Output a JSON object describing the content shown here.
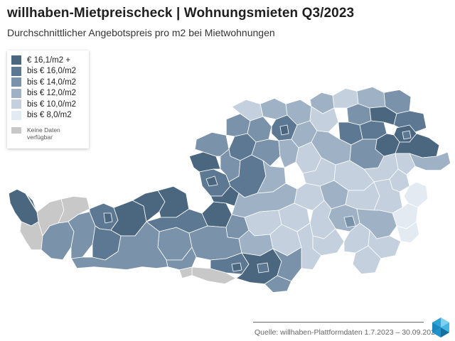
{
  "header": {
    "title": "willhaben-Mietpreischeck | Wohnungsmieten Q3/2023",
    "subtitle": "Durchschnittlicher Angebotspreis pro m2 bei Mietwohnungen"
  },
  "legend": {
    "items": [
      {
        "label": "€ 16,1/m2 +",
        "color": "#4b6780"
      },
      {
        "label": "bis € 16,0/m2",
        "color": "#5d7892"
      },
      {
        "label": "bis € 14,0/m2",
        "color": "#7b93aa"
      },
      {
        "label": "bis € 12,0/m2",
        "color": "#9fb1c4"
      },
      {
        "label": "bis € 10,0/m2",
        "color": "#c4d0dd"
      },
      {
        "label": "bis € 8,0/m2",
        "color": "#e4eaf2"
      }
    ],
    "no_data": {
      "line1": "Keine Daten",
      "line2": "verfügbar",
      "color": "#c8c8c8"
    }
  },
  "map": {
    "region_colors": {
      "c16": "#4b6780",
      "c14": "#5d7892",
      "c12": "#7b93aa",
      "c10": "#9fb1c4",
      "c8": "#c4d0dd",
      "c6": "#e4eaf2",
      "nodata": "#c8c8c8"
    }
  },
  "footer": {
    "source": "Quelle: willhaben-Plattformdaten 1.7.2023 – 30.09.2023"
  }
}
